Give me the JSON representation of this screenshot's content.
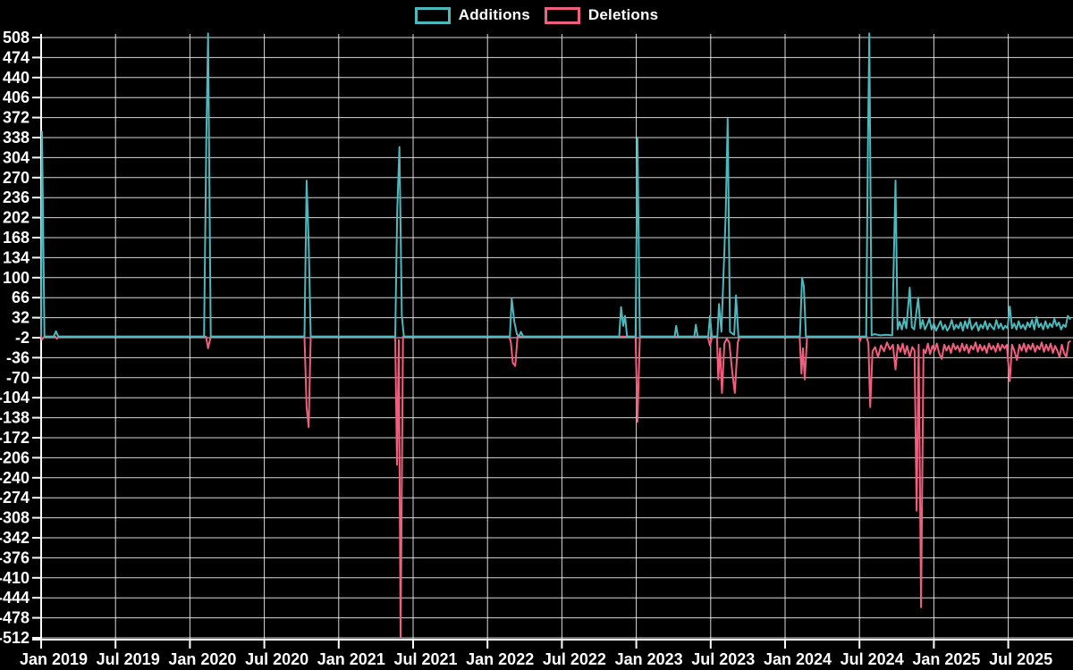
{
  "chart_data": {
    "type": "line",
    "title": "",
    "xlabel": "",
    "ylabel": "",
    "background_color": "#000000",
    "grid_color": "#ffffff",
    "text_color": "#ffffff",
    "grid": true,
    "legend_position": "top-center",
    "x_axis": {
      "tick_labels": [
        "Jan 2019",
        "Jul 2019",
        "Jan 2020",
        "Jul 2020",
        "Jan 2021",
        "Jul 2021",
        "Jan 2022",
        "Jul 2022",
        "Jan 2023",
        "Jul 2023",
        "Jan 2024",
        "Jul 2024",
        "Jan 2025",
        "Jul 2025"
      ],
      "start_year": 2019.0,
      "end_year": 2025.92
    },
    "y_axis": {
      "tick_values": [
        508,
        474,
        440,
        406,
        372,
        338,
        304,
        270,
        236,
        202,
        168,
        134,
        100,
        66,
        32,
        -2,
        -36,
        -70,
        -104,
        -138,
        -172,
        -206,
        -240,
        -274,
        -308,
        -342,
        -376,
        -410,
        -444,
        -478,
        -512
      ],
      "ylim": [
        -512,
        508
      ]
    },
    "series": [
      {
        "name": "Additions",
        "color": "#4bb9bd",
        "points": [
          [
            2019.0,
            2
          ],
          [
            2019.006,
            348
          ],
          [
            2019.022,
            0
          ],
          [
            2019.085,
            0
          ],
          [
            2019.1,
            9
          ],
          [
            2019.115,
            0
          ],
          [
            2020.095,
            0
          ],
          [
            2020.11,
            330
          ],
          [
            2020.122,
            515
          ],
          [
            2020.14,
            0
          ],
          [
            2020.77,
            0
          ],
          [
            2020.784,
            265
          ],
          [
            2020.798,
            160
          ],
          [
            2020.812,
            0
          ],
          [
            2021.38,
            0
          ],
          [
            2021.393,
            212
          ],
          [
            2021.408,
            322
          ],
          [
            2021.424,
            35
          ],
          [
            2021.438,
            0
          ],
          [
            2022.15,
            0
          ],
          [
            2022.163,
            64
          ],
          [
            2022.18,
            25
          ],
          [
            2022.198,
            4
          ],
          [
            2022.212,
            0
          ],
          [
            2022.225,
            8
          ],
          [
            2022.24,
            0
          ],
          [
            2022.885,
            0
          ],
          [
            2022.898,
            50
          ],
          [
            2022.912,
            18
          ],
          [
            2022.924,
            35
          ],
          [
            2022.938,
            0
          ],
          [
            2022.995,
            0
          ],
          [
            2023.008,
            338
          ],
          [
            2023.024,
            0
          ],
          [
            2023.258,
            0
          ],
          [
            2023.268,
            18
          ],
          [
            2023.28,
            0
          ],
          [
            2023.39,
            0
          ],
          [
            2023.4,
            20
          ],
          [
            2023.412,
            0
          ],
          [
            2023.484,
            0
          ],
          [
            2023.495,
            35
          ],
          [
            2023.508,
            0
          ],
          [
            2023.545,
            0
          ],
          [
            2023.556,
            55
          ],
          [
            2023.572,
            8
          ],
          [
            2023.601,
            207
          ],
          [
            2023.614,
            370
          ],
          [
            2023.63,
            8
          ],
          [
            2023.645,
            5
          ],
          [
            2023.658,
            3
          ],
          [
            2023.67,
            70
          ],
          [
            2023.686,
            0
          ],
          [
            2024.1,
            0
          ],
          [
            2024.114,
            100
          ],
          [
            2024.126,
            85
          ],
          [
            2024.14,
            0
          ],
          [
            2024.545,
            0
          ],
          [
            2024.556,
            300
          ],
          [
            2024.566,
            515
          ],
          [
            2024.582,
            2
          ],
          [
            2024.6,
            4
          ],
          [
            2024.64,
            2
          ],
          [
            2024.68,
            3
          ],
          [
            2024.72,
            2
          ],
          [
            2024.742,
            265
          ],
          [
            2024.756,
            12
          ],
          [
            2024.77,
            25
          ],
          [
            2024.785,
            12
          ],
          [
            2024.8,
            30
          ],
          [
            2024.815,
            14
          ],
          [
            2024.838,
            83
          ],
          [
            2024.852,
            16
          ],
          [
            2024.868,
            12
          ],
          [
            2024.895,
            66
          ],
          [
            2024.91,
            14
          ],
          [
            2024.925,
            28
          ],
          [
            2024.94,
            12
          ],
          [
            2024.955,
            20
          ],
          [
            2024.97,
            30
          ],
          [
            2024.985,
            12
          ],
          [
            2025.0,
            22
          ],
          [
            2025.015,
            10
          ],
          [
            2025.03,
            18
          ],
          [
            2025.045,
            26
          ],
          [
            2025.06,
            12
          ],
          [
            2025.075,
            20
          ],
          [
            2025.09,
            10
          ],
          [
            2025.105,
            16
          ],
          [
            2025.12,
            28
          ],
          [
            2025.135,
            12
          ],
          [
            2025.15,
            20
          ],
          [
            2025.165,
            14
          ],
          [
            2025.18,
            24
          ],
          [
            2025.195,
            10
          ],
          [
            2025.21,
            26
          ],
          [
            2025.225,
            14
          ],
          [
            2025.24,
            30
          ],
          [
            2025.255,
            12
          ],
          [
            2025.27,
            18
          ],
          [
            2025.285,
            24
          ],
          [
            2025.3,
            10
          ],
          [
            2025.315,
            20
          ],
          [
            2025.33,
            14
          ],
          [
            2025.345,
            26
          ],
          [
            2025.36,
            12
          ],
          [
            2025.375,
            22
          ],
          [
            2025.39,
            16
          ],
          [
            2025.405,
            12
          ],
          [
            2025.42,
            28
          ],
          [
            2025.435,
            14
          ],
          [
            2025.45,
            22
          ],
          [
            2025.465,
            12
          ],
          [
            2025.48,
            18
          ],
          [
            2025.495,
            14
          ],
          [
            2025.51,
            51
          ],
          [
            2025.525,
            14
          ],
          [
            2025.54,
            22
          ],
          [
            2025.555,
            12
          ],
          [
            2025.57,
            26
          ],
          [
            2025.585,
            14
          ],
          [
            2025.6,
            20
          ],
          [
            2025.615,
            12
          ],
          [
            2025.63,
            24
          ],
          [
            2025.645,
            16
          ],
          [
            2025.66,
            28
          ],
          [
            2025.675,
            12
          ],
          [
            2025.69,
            33
          ],
          [
            2025.705,
            16
          ],
          [
            2025.72,
            22
          ],
          [
            2025.735,
            12
          ],
          [
            2025.75,
            26
          ],
          [
            2025.765,
            14
          ],
          [
            2025.78,
            22
          ],
          [
            2025.795,
            16
          ],
          [
            2025.81,
            30
          ],
          [
            2025.825,
            18
          ],
          [
            2025.84,
            24
          ],
          [
            2025.855,
            12
          ],
          [
            2025.87,
            20
          ],
          [
            2025.885,
            16
          ],
          [
            2025.9,
            35
          ],
          [
            2025.915,
            30
          ]
        ]
      },
      {
        "name": "Deletions",
        "color": "#f0607e",
        "points": [
          [
            2019.0,
            0
          ],
          [
            2019.006,
            -5
          ],
          [
            2019.022,
            0
          ],
          [
            2019.095,
            0
          ],
          [
            2019.106,
            -4
          ],
          [
            2019.118,
            0
          ],
          [
            2020.108,
            0
          ],
          [
            2020.122,
            -20
          ],
          [
            2020.14,
            0
          ],
          [
            2020.77,
            0
          ],
          [
            2020.784,
            -120
          ],
          [
            2020.798,
            -154
          ],
          [
            2020.812,
            0
          ],
          [
            2021.38,
            0
          ],
          [
            2021.392,
            -218
          ],
          [
            2021.404,
            -6
          ],
          [
            2021.416,
            -512
          ],
          [
            2021.432,
            0
          ],
          [
            2022.148,
            0
          ],
          [
            2022.158,
            -12
          ],
          [
            2022.17,
            -45
          ],
          [
            2022.186,
            -50
          ],
          [
            2022.202,
            0
          ],
          [
            2022.995,
            0
          ],
          [
            2023.008,
            -145
          ],
          [
            2023.024,
            0
          ],
          [
            2023.48,
            0
          ],
          [
            2023.495,
            -15
          ],
          [
            2023.51,
            0
          ],
          [
            2023.542,
            0
          ],
          [
            2023.551,
            -73
          ],
          [
            2023.563,
            -20
          ],
          [
            2023.576,
            -96
          ],
          [
            2023.592,
            -12
          ],
          [
            2023.608,
            -4
          ],
          [
            2023.625,
            -10
          ],
          [
            2023.645,
            -60
          ],
          [
            2023.662,
            -96
          ],
          [
            2023.682,
            -10
          ],
          [
            2023.695,
            0
          ],
          [
            2024.098,
            0
          ],
          [
            2024.11,
            -63
          ],
          [
            2024.12,
            -20
          ],
          [
            2024.132,
            -73
          ],
          [
            2024.148,
            0
          ],
          [
            2024.495,
            0
          ],
          [
            2024.503,
            -8
          ],
          [
            2024.515,
            0
          ],
          [
            2024.548,
            0
          ],
          [
            2024.56,
            -12
          ],
          [
            2024.572,
            -120
          ],
          [
            2024.588,
            -25
          ],
          [
            2024.605,
            -18
          ],
          [
            2024.625,
            -35
          ],
          [
            2024.645,
            -15
          ],
          [
            2024.665,
            -25
          ],
          [
            2024.685,
            -10
          ],
          [
            2024.705,
            -22
          ],
          [
            2024.725,
            -14
          ],
          [
            2024.742,
            -56
          ],
          [
            2024.758,
            -14
          ],
          [
            2024.775,
            -26
          ],
          [
            2024.79,
            -12
          ],
          [
            2024.805,
            -30
          ],
          [
            2024.82,
            -16
          ],
          [
            2024.838,
            -35
          ],
          [
            2024.855,
            -18
          ],
          [
            2024.87,
            -24
          ],
          [
            2024.884,
            -296
          ],
          [
            2024.898,
            -14
          ],
          [
            2024.914,
            -460
          ],
          [
            2024.93,
            -22
          ],
          [
            2024.945,
            -28
          ],
          [
            2024.96,
            -12
          ],
          [
            2024.975,
            -30
          ],
          [
            2024.99,
            -16
          ],
          [
            2025.005,
            -24
          ],
          [
            2025.02,
            -12
          ],
          [
            2025.035,
            -28
          ],
          [
            2025.053,
            -38
          ],
          [
            2025.07,
            -14
          ],
          [
            2025.085,
            -24
          ],
          [
            2025.1,
            -16
          ],
          [
            2025.115,
            -28
          ],
          [
            2025.13,
            -12
          ],
          [
            2025.145,
            -22
          ],
          [
            2025.16,
            -16
          ],
          [
            2025.175,
            -26
          ],
          [
            2025.19,
            -12
          ],
          [
            2025.205,
            -24
          ],
          [
            2025.22,
            -14
          ],
          [
            2025.235,
            -28
          ],
          [
            2025.25,
            -16
          ],
          [
            2025.265,
            -22
          ],
          [
            2025.28,
            -10
          ],
          [
            2025.295,
            -26
          ],
          [
            2025.31,
            -14
          ],
          [
            2025.325,
            -24
          ],
          [
            2025.34,
            -16
          ],
          [
            2025.355,
            -28
          ],
          [
            2025.37,
            -12
          ],
          [
            2025.385,
            -22
          ],
          [
            2025.4,
            -16
          ],
          [
            2025.415,
            -26
          ],
          [
            2025.43,
            -12
          ],
          [
            2025.445,
            -24
          ],
          [
            2025.46,
            -14
          ],
          [
            2025.475,
            -20
          ],
          [
            2025.49,
            -14
          ],
          [
            2025.51,
            -76
          ],
          [
            2025.525,
            -14
          ],
          [
            2025.54,
            -24
          ],
          [
            2025.558,
            -40
          ],
          [
            2025.575,
            -14
          ],
          [
            2025.59,
            -24
          ],
          [
            2025.605,
            -12
          ],
          [
            2025.62,
            -26
          ],
          [
            2025.635,
            -14
          ],
          [
            2025.65,
            -22
          ],
          [
            2025.665,
            -12
          ],
          [
            2025.68,
            -26
          ],
          [
            2025.695,
            -16
          ],
          [
            2025.71,
            -22
          ],
          [
            2025.725,
            -10
          ],
          [
            2025.74,
            -26
          ],
          [
            2025.755,
            -14
          ],
          [
            2025.77,
            -24
          ],
          [
            2025.785,
            -12
          ],
          [
            2025.8,
            -28
          ],
          [
            2025.815,
            -16
          ],
          [
            2025.83,
            -24
          ],
          [
            2025.845,
            -35
          ],
          [
            2025.86,
            -14
          ],
          [
            2025.875,
            -28
          ],
          [
            2025.89,
            -35
          ],
          [
            2025.905,
            -10
          ],
          [
            2025.915,
            -8
          ]
        ]
      }
    ]
  }
}
